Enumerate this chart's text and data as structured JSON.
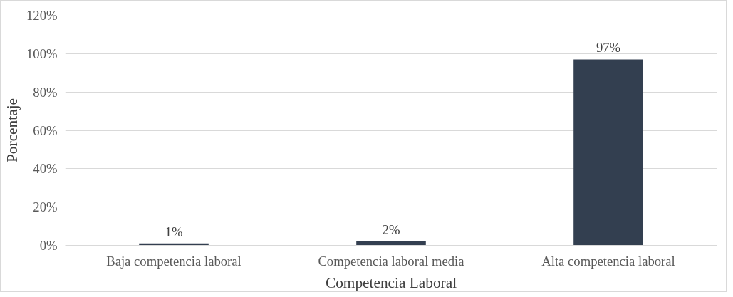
{
  "chart_data": {
    "type": "bar",
    "xlabel": "Competencia Laboral",
    "ylabel": "Porcentaje",
    "categories": [
      "Baja competencia laboral",
      "Competencia laboral media",
      "Alta competencia laboral"
    ],
    "values": [
      1,
      2,
      97
    ],
    "color": "#333f50",
    "data_labels": true,
    "value_labels": [
      "1%",
      "2%",
      "97%"
    ],
    "ylim": [
      0,
      120
    ],
    "yticks": [
      {
        "value": 0,
        "label": "0%"
      },
      {
        "value": 20,
        "label": "20%"
      },
      {
        "value": 40,
        "label": "40%"
      },
      {
        "value": 60,
        "label": "60%"
      },
      {
        "value": 80,
        "label": "80%"
      },
      {
        "value": 100,
        "label": "100%"
      },
      {
        "value": 120,
        "label": "120%"
      }
    ],
    "grid": "y"
  }
}
